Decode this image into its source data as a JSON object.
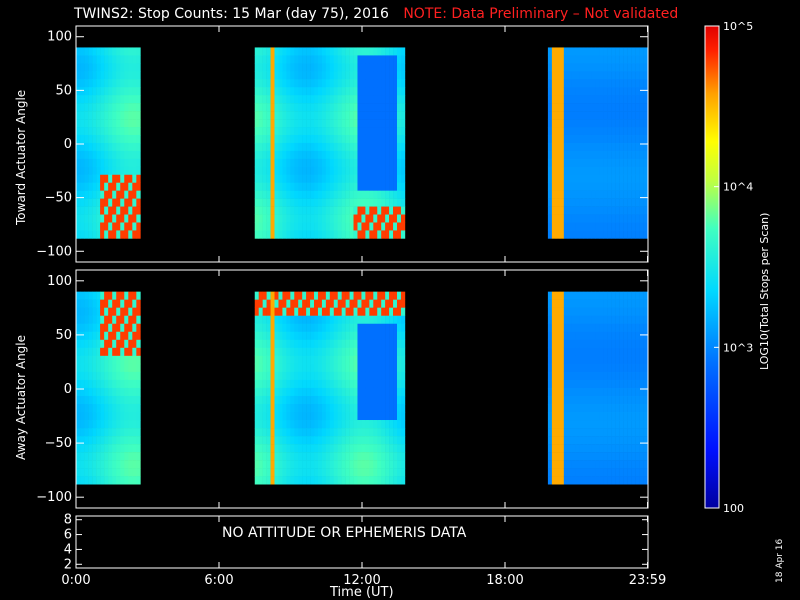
{
  "title": "TWINS2: Stop Counts: 15 Mar (day  75), 2016",
  "title_note": "NOTE: Data Preliminary – Not validated",
  "stamp": "18 Apr 16",
  "no_data_text": "NO ATTITUDE OR EPHEMERIS DATA",
  "colors": {
    "warning": "#ff2020",
    "background": "#000000",
    "axes": "#ffffff"
  },
  "chart_data": [
    {
      "type": "heatmap",
      "ylabel": "Toward Actuator Angle",
      "ylim": [
        -110,
        110
      ],
      "yticks": [
        "100",
        "50",
        "0",
        "−50",
        "−100"
      ],
      "xlim": [
        "0:00",
        "23:59"
      ],
      "data_y_range": [
        -88,
        90
      ],
      "data_intervals_hours": [
        [
          0.0,
          2.7
        ],
        [
          7.5,
          13.8
        ],
        [
          19.8,
          23.98
        ]
      ],
      "color_scale": "log",
      "color_range": [
        100,
        100000
      ],
      "features": [
        {
          "desc": "saturated counts near lower angles",
          "hours": [
            1.0,
            2.7
          ],
          "angle": [
            -88,
            -30
          ]
        },
        {
          "desc": "saturated counts near lower angles",
          "hours": [
            11.7,
            13.8
          ],
          "angle": [
            -88,
            -60
          ]
        },
        {
          "desc": "vertical bright streaks",
          "hours": [
            8.1,
            8.4
          ]
        },
        {
          "desc": "vertical bright streaks",
          "hours": [
            20.0,
            20.4
          ]
        },
        {
          "desc": "low-count depletion region",
          "hours": [
            11.8,
            13.5
          ],
          "angle": [
            -40,
            85
          ]
        }
      ]
    },
    {
      "type": "heatmap",
      "ylabel": "Away Actuator Angle",
      "ylim": [
        -110,
        110
      ],
      "yticks": [
        "100",
        "50",
        "0",
        "−50",
        "−100"
      ],
      "xlim": [
        "0:00",
        "23:59"
      ],
      "data_y_range": [
        -88,
        90
      ],
      "data_intervals_hours": [
        [
          0.0,
          2.7
        ],
        [
          7.5,
          13.8
        ],
        [
          19.8,
          23.98
        ]
      ],
      "color_scale": "log",
      "color_range": [
        100,
        100000
      ],
      "features": [
        {
          "desc": "saturated counts near upper angles",
          "hours": [
            1.0,
            2.7
          ],
          "angle": [
            30,
            90
          ]
        },
        {
          "desc": "saturated counts near upper angles",
          "hours": [
            7.5,
            13.8
          ],
          "angle": [
            70,
            90
          ]
        },
        {
          "desc": "vertical bright streaks",
          "hours": [
            8.1,
            8.4
          ]
        },
        {
          "desc": "vertical bright streaks",
          "hours": [
            20.0,
            20.4
          ]
        },
        {
          "desc": "low-count depletion region",
          "hours": [
            11.8,
            13.5
          ],
          "angle": [
            -30,
            60
          ]
        }
      ]
    },
    {
      "type": "line",
      "ylim": [
        1.5,
        8.5
      ],
      "yticks": [
        "8",
        "6",
        "4",
        "2"
      ],
      "series": []
    }
  ],
  "xaxis": {
    "label": "Time (UT)",
    "ticks": [
      {
        "label": "0:00",
        "h": 0
      },
      {
        "label": "6:00",
        "h": 6
      },
      {
        "label": "12:00",
        "h": 12
      },
      {
        "label": "18:00",
        "h": 18
      },
      {
        "label": "23:59",
        "h": 23.98
      }
    ]
  },
  "colorbar": {
    "label": "LOG10(Total Stops per Scan)",
    "ticks": [
      {
        "label": "10^5",
        "v": 100000
      },
      {
        "label": "10^4",
        "v": 10000
      },
      {
        "label": "10^3",
        "v": 1000
      },
      {
        "label": "100",
        "v": 100
      }
    ]
  }
}
